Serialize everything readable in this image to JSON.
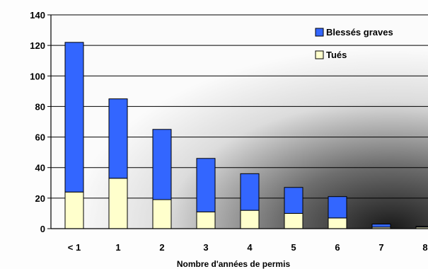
{
  "chart_data": {
    "type": "bar",
    "stacked": true,
    "title": "",
    "xlabel": "Nombre d'années de permis",
    "ylabel": "",
    "categories": [
      "< 1",
      "1",
      "2",
      "3",
      "4",
      "5",
      "6",
      "7",
      "8"
    ],
    "series": [
      {
        "name": "Tués",
        "values": [
          24,
          33,
          19,
          11,
          12,
          10,
          7,
          1,
          1
        ],
        "color": "#FFFFCC"
      },
      {
        "name": "Blessés graves",
        "values": [
          98,
          52,
          46,
          35,
          24,
          17,
          14,
          2,
          0.5
        ],
        "color": "#3366FF"
      }
    ],
    "ylim": [
      0,
      140
    ],
    "yticks": [
      0,
      20,
      40,
      60,
      80,
      100,
      120,
      140
    ],
    "grid": true,
    "legend": "top-right",
    "legend_order": [
      "Blessés graves",
      "Tués"
    ]
  }
}
